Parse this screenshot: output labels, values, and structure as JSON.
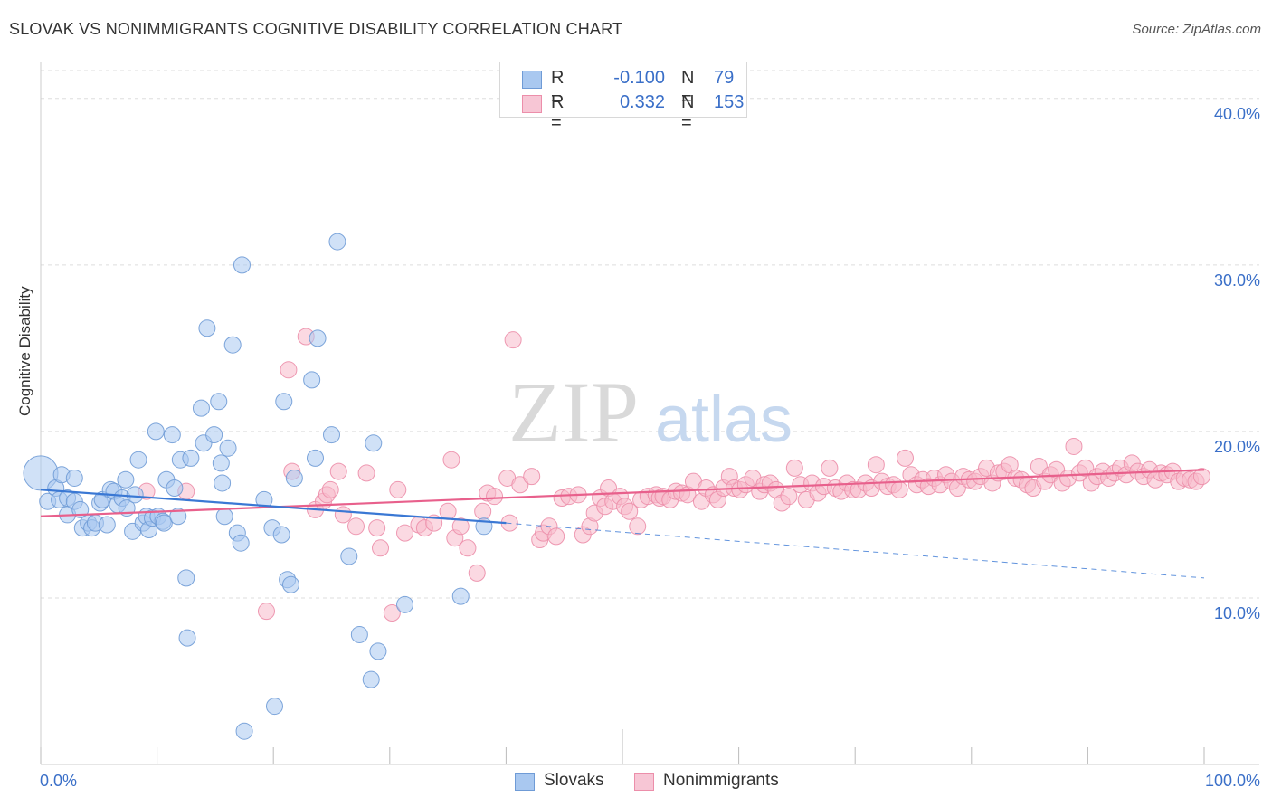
{
  "title": "SLOVAK VS NONIMMIGRANTS COGNITIVE DISABILITY CORRELATION CHART",
  "source": "Source: ZipAtlas.com",
  "watermark": {
    "zip": "ZIP",
    "atlas": "atlas"
  },
  "legend": {
    "rows": [
      {
        "r_label": "R =",
        "r_value": "-0.100",
        "n_label": "N =",
        "n_value": "79"
      },
      {
        "r_label": "R =",
        "r_value": "0.332",
        "n_label": "N =",
        "n_value": "153"
      }
    ]
  },
  "bottom_legend": [
    "Slovaks",
    "Nonimmigrants"
  ],
  "colors": {
    "slovaks_fill": "#a9c8f0",
    "slovaks_stroke": "#6f9bd6",
    "slovaks_line": "#3a78d4",
    "nonimm_fill": "#f7b9cb",
    "nonimm_stroke": "#ec8eaa",
    "nonimm_line": "#e8608c",
    "tick_text": "#3a6fc8",
    "grid": "#dddddd"
  },
  "chart_data": {
    "type": "scatter",
    "title": "SLOVAK VS NONIMMIGRANTS COGNITIVE DISABILITY CORRELATION CHART",
    "xlabel": "",
    "ylabel": "Cognitive Disability",
    "xlim": [
      0,
      100
    ],
    "ylim": [
      0,
      42
    ],
    "x_tick_labels": [
      "0.0%",
      "100.0%"
    ],
    "y_ticks": [
      10,
      20,
      30,
      40
    ],
    "y_tick_labels": [
      "10.0%",
      "20.0%",
      "30.0%",
      "40.0%"
    ],
    "grid": true,
    "legend_position": "top-center",
    "series": [
      {
        "name": "Slovaks",
        "r": -0.1,
        "n": 79,
        "trend": {
          "x": [
            0,
            40
          ],
          "y": [
            16.5,
            14.5
          ]
        },
        "trend_dashed": {
          "x": [
            40,
            100
          ],
          "y": [
            14.5,
            11.2
          ]
        },
        "points": [
          [
            0,
            17.5
          ],
          [
            0.6,
            15.8
          ],
          [
            1.3,
            16.6
          ],
          [
            1.6,
            15.9
          ],
          [
            1.8,
            17.4
          ],
          [
            2.3,
            16.0
          ],
          [
            2.3,
            15.0
          ],
          [
            2.9,
            15.8
          ],
          [
            2.9,
            17.2
          ],
          [
            3.4,
            15.3
          ],
          [
            3.6,
            14.2
          ],
          [
            4.1,
            14.5
          ],
          [
            4.4,
            14.2
          ],
          [
            4.7,
            14.5
          ],
          [
            5.1,
            15.7
          ],
          [
            5.3,
            15.9
          ],
          [
            5.7,
            14.4
          ],
          [
            6.0,
            16.5
          ],
          [
            6.3,
            16.4
          ],
          [
            6.6,
            15.6
          ],
          [
            7.0,
            16.0
          ],
          [
            7.3,
            17.1
          ],
          [
            7.4,
            15.4
          ],
          [
            7.9,
            14.0
          ],
          [
            8.1,
            16.2
          ],
          [
            8.4,
            18.3
          ],
          [
            8.8,
            14.5
          ],
          [
            9.1,
            14.9
          ],
          [
            9.3,
            14.1
          ],
          [
            9.6,
            14.8
          ],
          [
            9.9,
            20.0
          ],
          [
            10.1,
            14.9
          ],
          [
            10.5,
            14.6
          ],
          [
            10.6,
            14.5
          ],
          [
            10.8,
            17.1
          ],
          [
            11.3,
            19.8
          ],
          [
            11.5,
            16.6
          ],
          [
            11.8,
            14.9
          ],
          [
            12.0,
            18.3
          ],
          [
            12.5,
            11.2
          ],
          [
            12.6,
            7.6
          ],
          [
            12.9,
            18.4
          ],
          [
            13.8,
            21.4
          ],
          [
            14.0,
            19.3
          ],
          [
            14.3,
            26.2
          ],
          [
            14.9,
            19.8
          ],
          [
            15.3,
            21.8
          ],
          [
            15.5,
            18.1
          ],
          [
            15.6,
            16.9
          ],
          [
            15.8,
            14.9
          ],
          [
            16.1,
            19.0
          ],
          [
            16.5,
            25.2
          ],
          [
            16.9,
            13.9
          ],
          [
            17.2,
            13.3
          ],
          [
            17.3,
            30.0
          ],
          [
            17.5,
            2.0
          ],
          [
            19.2,
            15.9
          ],
          [
            19.9,
            14.2
          ],
          [
            20.1,
            3.5
          ],
          [
            20.7,
            13.8
          ],
          [
            20.9,
            21.8
          ],
          [
            21.2,
            11.1
          ],
          [
            21.5,
            10.8
          ],
          [
            21.8,
            17.2
          ],
          [
            23.3,
            23.1
          ],
          [
            23.6,
            18.4
          ],
          [
            23.8,
            25.6
          ],
          [
            25.0,
            19.8
          ],
          [
            25.5,
            31.4
          ],
          [
            26.5,
            12.5
          ],
          [
            27.4,
            7.8
          ],
          [
            28.4,
            5.1
          ],
          [
            28.6,
            19.3
          ],
          [
            29.0,
            6.8
          ],
          [
            31.3,
            9.6
          ],
          [
            36.1,
            10.1
          ],
          [
            38.1,
            14.3
          ]
        ]
      },
      {
        "name": "Nonimmigrants",
        "r": 0.332,
        "n": 153,
        "trend": {
          "x": [
            0,
            100
          ],
          "y": [
            14.9,
            17.7
          ]
        },
        "points": [
          [
            9.1,
            16.4
          ],
          [
            12.5,
            16.4
          ],
          [
            19.4,
            9.2
          ],
          [
            21.3,
            23.7
          ],
          [
            21.6,
            17.6
          ],
          [
            22.8,
            25.7
          ],
          [
            23.6,
            15.3
          ],
          [
            24.3,
            15.8
          ],
          [
            24.6,
            16.2
          ],
          [
            24.9,
            16.5
          ],
          [
            25.6,
            17.6
          ],
          [
            26.0,
            15.0
          ],
          [
            27.1,
            14.3
          ],
          [
            28.0,
            17.5
          ],
          [
            28.9,
            14.2
          ],
          [
            29.2,
            13.0
          ],
          [
            30.2,
            9.1
          ],
          [
            30.7,
            16.5
          ],
          [
            31.3,
            13.9
          ],
          [
            32.5,
            14.4
          ],
          [
            33.0,
            14.2
          ],
          [
            33.8,
            14.5
          ],
          [
            35.0,
            15.2
          ],
          [
            35.3,
            18.3
          ],
          [
            35.6,
            13.6
          ],
          [
            36.1,
            14.3
          ],
          [
            36.7,
            13.0
          ],
          [
            37.5,
            11.5
          ],
          [
            38.0,
            15.2
          ],
          [
            38.4,
            16.3
          ],
          [
            39.0,
            16.1
          ],
          [
            40.1,
            17.2
          ],
          [
            40.3,
            14.5
          ],
          [
            40.6,
            25.5
          ],
          [
            41.2,
            16.8
          ],
          [
            42.2,
            17.3
          ],
          [
            42.9,
            13.5
          ],
          [
            43.2,
            13.9
          ],
          [
            43.7,
            14.3
          ],
          [
            44.3,
            13.7
          ],
          [
            44.8,
            16.0
          ],
          [
            45.4,
            16.1
          ],
          [
            46.2,
            16.2
          ],
          [
            46.6,
            13.8
          ],
          [
            47.2,
            14.3
          ],
          [
            47.6,
            15.1
          ],
          [
            48.1,
            16.0
          ],
          [
            48.5,
            15.5
          ],
          [
            48.8,
            16.6
          ],
          [
            49.2,
            15.8
          ],
          [
            49.8,
            16.1
          ],
          [
            50.2,
            15.5
          ],
          [
            50.6,
            15.2
          ],
          [
            51.3,
            14.3
          ],
          [
            51.6,
            15.9
          ],
          [
            52.2,
            16.1
          ],
          [
            52.9,
            16.2
          ],
          [
            53.2,
            16.0
          ],
          [
            53.5,
            16.1
          ],
          [
            54.1,
            15.9
          ],
          [
            54.6,
            16.4
          ],
          [
            55.1,
            16.3
          ],
          [
            55.6,
            16.2
          ],
          [
            56.1,
            17.0
          ],
          [
            56.8,
            15.8
          ],
          [
            57.2,
            16.6
          ],
          [
            57.8,
            16.2
          ],
          [
            58.2,
            15.9
          ],
          [
            58.7,
            16.6
          ],
          [
            59.2,
            17.3
          ],
          [
            59.6,
            16.6
          ],
          [
            60.1,
            16.5
          ],
          [
            60.6,
            16.8
          ],
          [
            61.2,
            17.2
          ],
          [
            61.8,
            16.4
          ],
          [
            62.2,
            16.8
          ],
          [
            62.7,
            16.9
          ],
          [
            63.2,
            16.5
          ],
          [
            63.7,
            15.7
          ],
          [
            64.3,
            16.1
          ],
          [
            64.8,
            17.8
          ],
          [
            65.3,
            16.8
          ],
          [
            65.8,
            15.9
          ],
          [
            66.3,
            16.9
          ],
          [
            66.8,
            16.3
          ],
          [
            67.3,
            16.7
          ],
          [
            67.8,
            17.8
          ],
          [
            68.3,
            16.6
          ],
          [
            68.8,
            16.4
          ],
          [
            69.3,
            16.9
          ],
          [
            69.8,
            16.5
          ],
          [
            70.3,
            16.5
          ],
          [
            70.9,
            16.9
          ],
          [
            71.4,
            16.6
          ],
          [
            71.8,
            18.0
          ],
          [
            72.3,
            17.0
          ],
          [
            72.8,
            16.7
          ],
          [
            73.3,
            16.8
          ],
          [
            73.8,
            16.5
          ],
          [
            74.3,
            18.4
          ],
          [
            74.8,
            17.4
          ],
          [
            75.3,
            16.8
          ],
          [
            75.8,
            17.1
          ],
          [
            76.3,
            16.7
          ],
          [
            76.8,
            17.2
          ],
          [
            77.3,
            16.8
          ],
          [
            77.8,
            17.4
          ],
          [
            78.3,
            17.0
          ],
          [
            78.8,
            16.6
          ],
          [
            79.3,
            17.3
          ],
          [
            79.8,
            17.1
          ],
          [
            80.3,
            17.0
          ],
          [
            80.8,
            17.3
          ],
          [
            81.3,
            17.8
          ],
          [
            81.8,
            16.9
          ],
          [
            82.3,
            17.5
          ],
          [
            82.8,
            17.6
          ],
          [
            83.3,
            18.0
          ],
          [
            83.8,
            17.2
          ],
          [
            84.3,
            17.1
          ],
          [
            84.8,
            16.8
          ],
          [
            85.3,
            16.6
          ],
          [
            85.8,
            17.9
          ],
          [
            86.3,
            17.0
          ],
          [
            86.8,
            17.4
          ],
          [
            87.3,
            17.7
          ],
          [
            87.8,
            16.9
          ],
          [
            88.3,
            17.2
          ],
          [
            88.8,
            19.1
          ],
          [
            89.3,
            17.5
          ],
          [
            89.8,
            17.8
          ],
          [
            90.3,
            16.9
          ],
          [
            90.8,
            17.3
          ],
          [
            91.3,
            17.6
          ],
          [
            91.8,
            17.2
          ],
          [
            92.3,
            17.5
          ],
          [
            92.8,
            17.8
          ],
          [
            93.3,
            17.4
          ],
          [
            93.8,
            18.1
          ],
          [
            94.3,
            17.6
          ],
          [
            94.8,
            17.3
          ],
          [
            95.3,
            17.7
          ],
          [
            95.8,
            17.1
          ],
          [
            96.3,
            17.5
          ],
          [
            96.8,
            17.4
          ],
          [
            97.3,
            17.6
          ],
          [
            97.8,
            17.0
          ],
          [
            98.3,
            17.2
          ],
          [
            98.8,
            17.1
          ],
          [
            99.3,
            17.0
          ],
          [
            99.8,
            17.3
          ]
        ]
      }
    ]
  }
}
